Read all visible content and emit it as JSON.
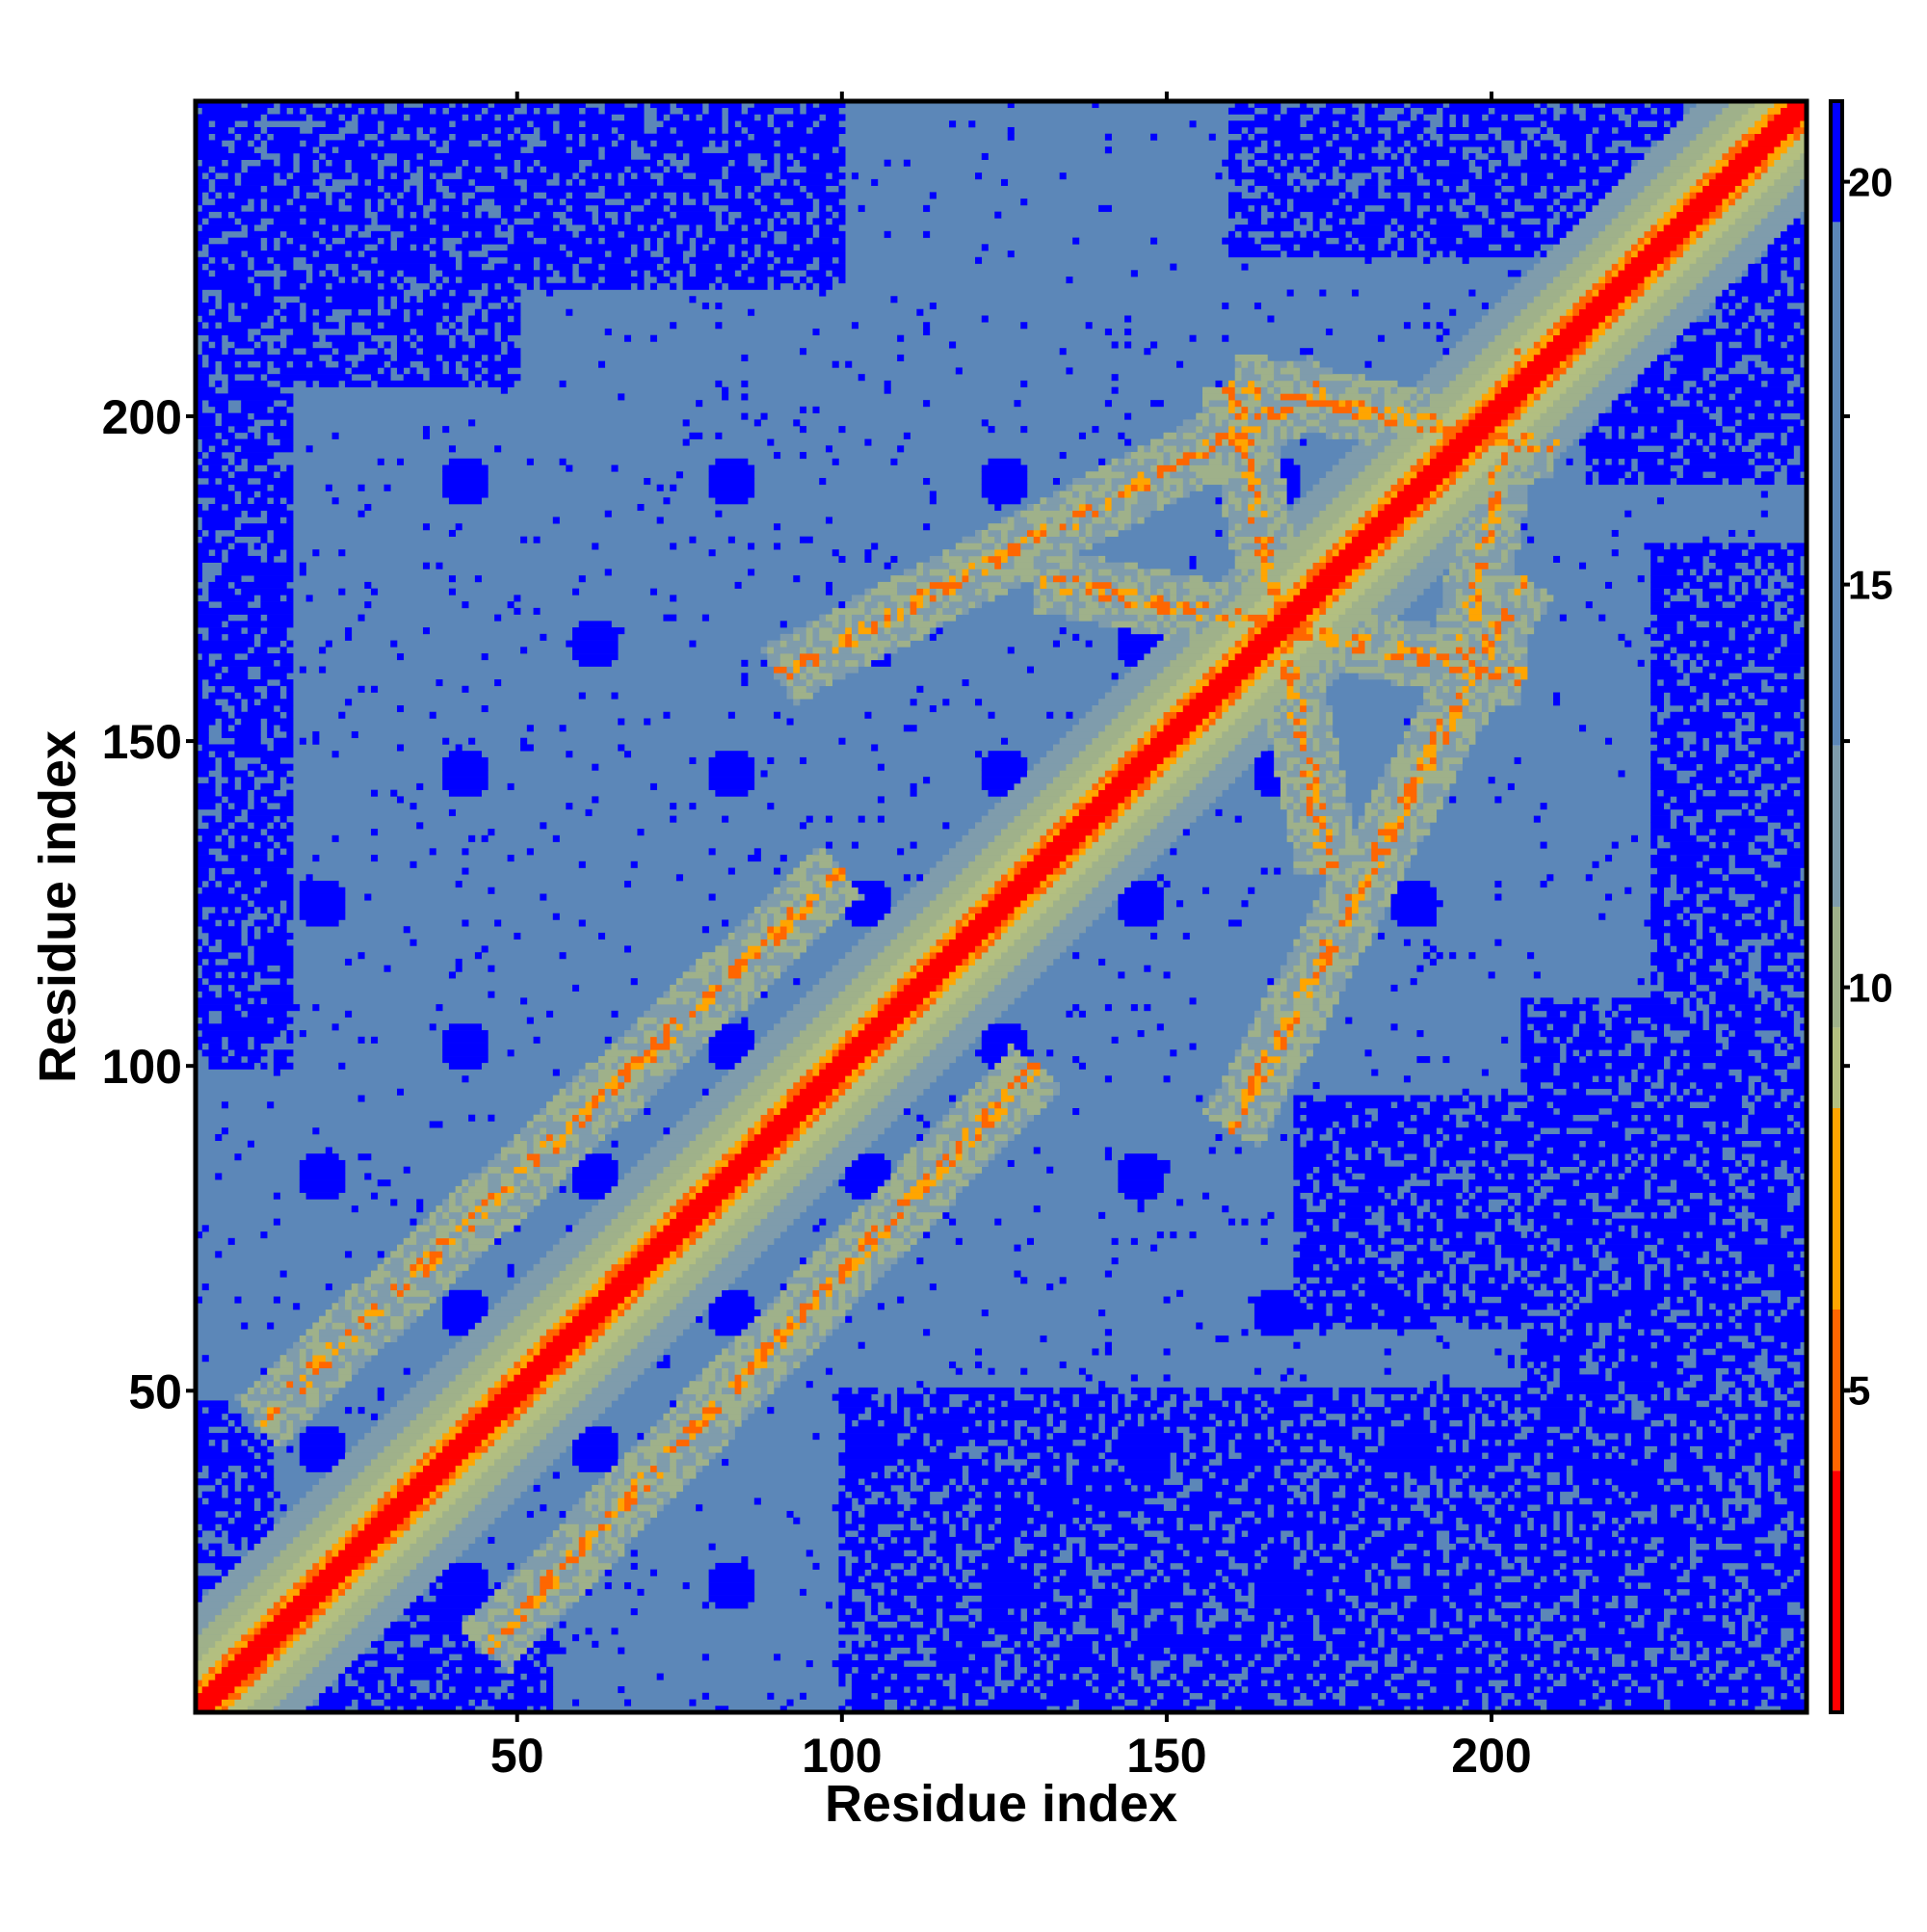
{
  "chart_data": {
    "type": "heatmap",
    "description_of_content": "",
    "xlabel": "Residue index",
    "ylabel": "Residue index",
    "n_residues": 248,
    "xlim": [
      1,
      248
    ],
    "ylim": [
      1,
      248
    ],
    "x_ticks": [
      50,
      100,
      150,
      200
    ],
    "y_ticks": [
      50,
      100,
      150,
      200
    ],
    "colorbar": {
      "range": [
        1,
        21
      ],
      "ticks": [
        5,
        10,
        15,
        20
      ],
      "bands": [
        {
          "from": 1,
          "to": 4,
          "color": "#ff0000"
        },
        {
          "from": 4,
          "to": 6,
          "color": "#ff6600"
        },
        {
          "from": 6,
          "to": 8.5,
          "color": "#ffa500"
        },
        {
          "from": 8.5,
          "to": 9.5,
          "color": "#b3bf80"
        },
        {
          "from": 9.5,
          "to": 11,
          "color": "#9fb18a"
        },
        {
          "from": 11,
          "to": 13,
          "color": "#7f9cac"
        },
        {
          "from": 13,
          "to": 19.5,
          "color": "#5c87b8"
        },
        {
          "from": 19.5,
          "to": 21,
          "color": "#0000ff"
        }
      ]
    },
    "colors": {
      "far": "#0000ff",
      "mid": "#5c87b8",
      "near_far": "#9fb18a",
      "near": "#ffa500",
      "close": "#ff6600",
      "contact": "#ff0000"
    },
    "contact_bands": [
      {
        "offset": 0,
        "distance": 1
      },
      {
        "offset": 2,
        "distance": 4
      },
      {
        "offset": 4,
        "distance": 7
      },
      {
        "offset": 7,
        "distance": 10
      },
      {
        "offset": 11,
        "distance": 13
      }
    ],
    "secondary_contact_arcs": [
      {
        "x_start": 10,
        "y_start": 45,
        "x_end": 100,
        "y_end": 130,
        "distance": 7
      },
      {
        "x_start": 90,
        "y_start": 160,
        "x_end": 175,
        "y_end": 205,
        "distance": 7
      },
      {
        "x_start": 160,
        "y_start": 205,
        "x_end": 210,
        "y_end": 195,
        "distance": 7
      },
      {
        "x_start": 130,
        "y_start": 175,
        "x_end": 205,
        "y_end": 160,
        "distance": 7
      },
      {
        "x_start": 45,
        "y_start": 10,
        "x_end": 130,
        "y_end": 100,
        "distance": 7
      },
      {
        "x_start": 160,
        "y_start": 90,
        "x_end": 205,
        "y_end": 175,
        "distance": 7
      },
      {
        "x_start": 195,
        "y_start": 160,
        "x_end": 205,
        "y_end": 210,
        "distance": 7
      },
      {
        "x_start": 175,
        "y_start": 130,
        "x_end": 160,
        "y_end": 205,
        "distance": 7
      }
    ],
    "far_regions": [
      {
        "x": [
          1,
          50
        ],
        "y": [
          205,
          248
        ]
      },
      {
        "x": [
          50,
          100
        ],
        "y": [
          220,
          248
        ]
      },
      {
        "x": [
          160,
          248
        ],
        "y": [
          225,
          248
        ]
      },
      {
        "x": [
          215,
          248
        ],
        "y": [
          190,
          248
        ]
      },
      {
        "x": [
          1,
          15
        ],
        "y": [
          100,
          205
        ]
      },
      {
        "x": [
          1,
          12
        ],
        "y": [
          1,
          48
        ]
      },
      {
        "x": [
          15,
          55
        ],
        "y": [
          1,
          20
        ]
      },
      {
        "x": [
          100,
          248
        ],
        "y": [
          1,
          50
        ]
      },
      {
        "x": [
          205,
          248
        ],
        "y": [
          1,
          110
        ]
      },
      {
        "x": [
          225,
          248
        ],
        "y": [
          100,
          180
        ]
      },
      {
        "x": [
          170,
          248
        ],
        "y": [
          60,
          95
        ]
      }
    ],
    "far_spots": [
      {
        "x": 42,
        "y": 190
      },
      {
        "x": 83,
        "y": 190
      },
      {
        "x": 125,
        "y": 190
      },
      {
        "x": 167,
        "y": 190
      },
      {
        "x": 62,
        "y": 165
      },
      {
        "x": 104,
        "y": 165
      },
      {
        "x": 146,
        "y": 165
      },
      {
        "x": 188,
        "y": 165
      },
      {
        "x": 42,
        "y": 145
      },
      {
        "x": 83,
        "y": 145
      },
      {
        "x": 125,
        "y": 145
      },
      {
        "x": 167,
        "y": 145
      },
      {
        "x": 20,
        "y": 125
      },
      {
        "x": 104,
        "y": 125
      },
      {
        "x": 146,
        "y": 125
      },
      {
        "x": 188,
        "y": 125
      },
      {
        "x": 42,
        "y": 103
      },
      {
        "x": 83,
        "y": 103
      },
      {
        "x": 125,
        "y": 103
      },
      {
        "x": 167,
        "y": 103
      },
      {
        "x": 20,
        "y": 83
      },
      {
        "x": 62,
        "y": 83
      },
      {
        "x": 104,
        "y": 83
      },
      {
        "x": 146,
        "y": 83
      },
      {
        "x": 42,
        "y": 62
      },
      {
        "x": 83,
        "y": 62
      },
      {
        "x": 167,
        "y": 62
      },
      {
        "x": 20,
        "y": 41
      },
      {
        "x": 62,
        "y": 41
      },
      {
        "x": 104,
        "y": 41
      },
      {
        "x": 146,
        "y": 41
      },
      {
        "x": 188,
        "y": 41
      },
      {
        "x": 42,
        "y": 20
      },
      {
        "x": 83,
        "y": 20
      },
      {
        "x": 125,
        "y": 20
      },
      {
        "x": 167,
        "y": 20
      }
    ]
  }
}
